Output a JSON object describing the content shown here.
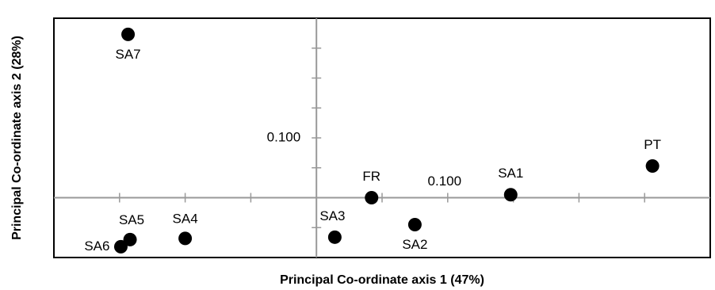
{
  "chart_data": {
    "type": "scatter",
    "xlabel": "Principal Co-ordinate axis 1 (47%)",
    "ylabel": "Principal Co-ordinate axis 2 (28%)",
    "labels": [
      "SA7",
      "PT",
      "SA1",
      "FR",
      "SA2",
      "SA3",
      "SA4",
      "SA5",
      "SA6"
    ],
    "x": [
      -0.1435,
      0.256,
      0.148,
      0.042,
      0.075,
      0.014,
      -0.1,
      -0.142,
      -0.149
    ],
    "y": [
      0.273,
      0.053,
      0.005,
      0.0,
      -0.045,
      -0.066,
      -0.068,
      -0.07,
      -0.082
    ],
    "color": "#000000",
    "xlim": [
      -0.2,
      0.3
    ],
    "ylim": [
      -0.1,
      0.3
    ],
    "xticks": [
      {
        "value": -0.15,
        "label": null
      },
      {
        "value": -0.1,
        "label": null
      },
      {
        "value": -0.05,
        "label": null
      },
      {
        "value": 0.05,
        "label": null
      },
      {
        "value": 0.1,
        "label": "0.100"
      },
      {
        "value": 0.15,
        "label": null
      },
      {
        "value": 0.2,
        "label": null
      },
      {
        "value": 0.25,
        "label": null
      }
    ],
    "yticks": [
      {
        "value": -0.05,
        "label": null
      },
      {
        "value": 0.05,
        "label": null
      },
      {
        "value": 0.1,
        "label": "0.100"
      },
      {
        "value": 0.15,
        "label": null
      },
      {
        "value": 0.2,
        "label": null
      },
      {
        "value": 0.25,
        "label": null
      }
    ]
  }
}
